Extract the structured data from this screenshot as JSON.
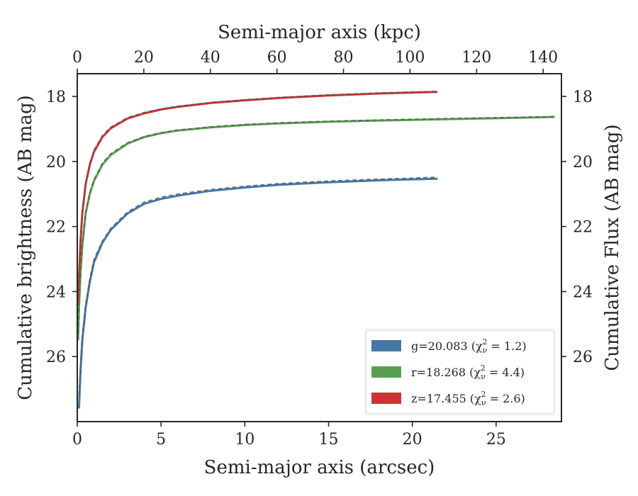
{
  "chart_data": {
    "type": "line",
    "xlabel": "Semi-major axis (arcsec)",
    "ylabel": "Cumulative brightness (AB mag)",
    "x2label": "Semi-major axis (kpc)",
    "y2label": "Cumulative Flux (AB mag)",
    "xlim": [
      0,
      28.9
    ],
    "ylim": [
      28.0,
      17.3
    ],
    "x2lim": [
      0,
      145.5
    ],
    "y_inverted": true,
    "grid": false,
    "xticks": [
      {
        "value": 0,
        "label": "0"
      },
      {
        "value": 5,
        "label": "5"
      },
      {
        "value": 10,
        "label": "10"
      },
      {
        "value": 15,
        "label": "15"
      },
      {
        "value": 20,
        "label": "20"
      },
      {
        "value": 25,
        "label": "25"
      }
    ],
    "x2ticks": [
      {
        "value": 0,
        "label": "0"
      },
      {
        "value": 20,
        "label": "20"
      },
      {
        "value": 40,
        "label": "40"
      },
      {
        "value": 60,
        "label": "60"
      },
      {
        "value": 80,
        "label": "80"
      },
      {
        "value": 100,
        "label": "100"
      },
      {
        "value": 120,
        "label": "120"
      },
      {
        "value": 140,
        "label": "140"
      }
    ],
    "yticks": [
      {
        "value": 18,
        "label": "18"
      },
      {
        "value": 20,
        "label": "20"
      },
      {
        "value": 22,
        "label": "22"
      },
      {
        "value": 24,
        "label": "24"
      },
      {
        "value": 26,
        "label": "26"
      }
    ],
    "legend": {
      "position": "lower-right",
      "entries": [
        {
          "label": "g=20.083 (χ",
          "sub": "ν",
          "sup": "2",
          "tail": " = 1.2)",
          "color": "#4477a6"
        },
        {
          "label": "r=18.268 (χ",
          "sub": "ν",
          "sup": "2",
          "tail": " = 4.4)",
          "color": "#58a04f"
        },
        {
          "label": "z=17.455 (χ",
          "sub": "ν",
          "sup": "2",
          "tail": " = 2.6)",
          "color": "#cc3333"
        }
      ]
    },
    "series": [
      {
        "band": "g",
        "color": "#4477a6",
        "x": [
          0.1,
          0.2,
          0.3,
          0.5,
          0.75,
          1.0,
          1.5,
          2.0,
          3.0,
          4.0,
          5.0,
          6.0,
          8.0,
          10.0,
          12.0,
          15.0,
          18.0,
          20.0,
          21.5
        ],
        "y": [
          27.6,
          26.4,
          25.5,
          24.5,
          23.7,
          23.1,
          22.5,
          22.1,
          21.6,
          21.3,
          21.15,
          21.05,
          20.9,
          20.8,
          20.72,
          20.64,
          20.58,
          20.55,
          20.53
        ],
        "model": [
          27.2,
          26.3,
          25.4,
          24.4,
          23.6,
          23.0,
          22.45,
          22.05,
          21.55,
          21.25,
          21.1,
          21.0,
          20.86,
          20.76,
          20.68,
          20.6,
          20.54,
          20.51,
          20.48
        ]
      },
      {
        "band": "r",
        "color": "#58a04f",
        "x": [
          0.05,
          0.1,
          0.2,
          0.3,
          0.5,
          0.75,
          1.0,
          1.5,
          2.0,
          3.0,
          4.0,
          5.0,
          6.0,
          8.0,
          10.0,
          12.0,
          15.0,
          18.0,
          20.0,
          22.0,
          25.0,
          28.5
        ],
        "y": [
          25.5,
          24.5,
          23.4,
          22.6,
          21.6,
          21.0,
          20.6,
          20.1,
          19.8,
          19.45,
          19.25,
          19.13,
          19.05,
          18.95,
          18.88,
          18.83,
          18.78,
          18.74,
          18.72,
          18.7,
          18.67,
          18.63
        ],
        "model": [
          25.3,
          24.3,
          23.3,
          22.5,
          21.55,
          20.95,
          20.55,
          20.05,
          19.76,
          19.42,
          19.23,
          19.11,
          19.03,
          18.93,
          18.86,
          18.81,
          18.76,
          18.72,
          18.7,
          18.68,
          18.65,
          18.62
        ]
      },
      {
        "band": "z",
        "color": "#cc3333",
        "x": [
          0.05,
          0.1,
          0.2,
          0.3,
          0.5,
          0.75,
          1.0,
          1.5,
          2.0,
          3.0,
          4.0,
          5.0,
          6.0,
          8.0,
          10.0,
          12.0,
          15.0,
          18.0,
          20.0,
          21.5
        ],
        "y": [
          24.4,
          23.6,
          22.4,
          21.6,
          20.7,
          20.1,
          19.7,
          19.25,
          18.98,
          18.68,
          18.52,
          18.4,
          18.32,
          18.2,
          18.12,
          18.05,
          17.97,
          17.91,
          17.88,
          17.86
        ],
        "model": [
          24.2,
          23.4,
          22.3,
          21.5,
          20.65,
          20.05,
          19.65,
          19.2,
          18.94,
          18.65,
          18.49,
          18.38,
          18.3,
          18.18,
          18.1,
          18.03,
          17.95,
          17.89,
          17.86,
          17.84
        ]
      }
    ]
  }
}
